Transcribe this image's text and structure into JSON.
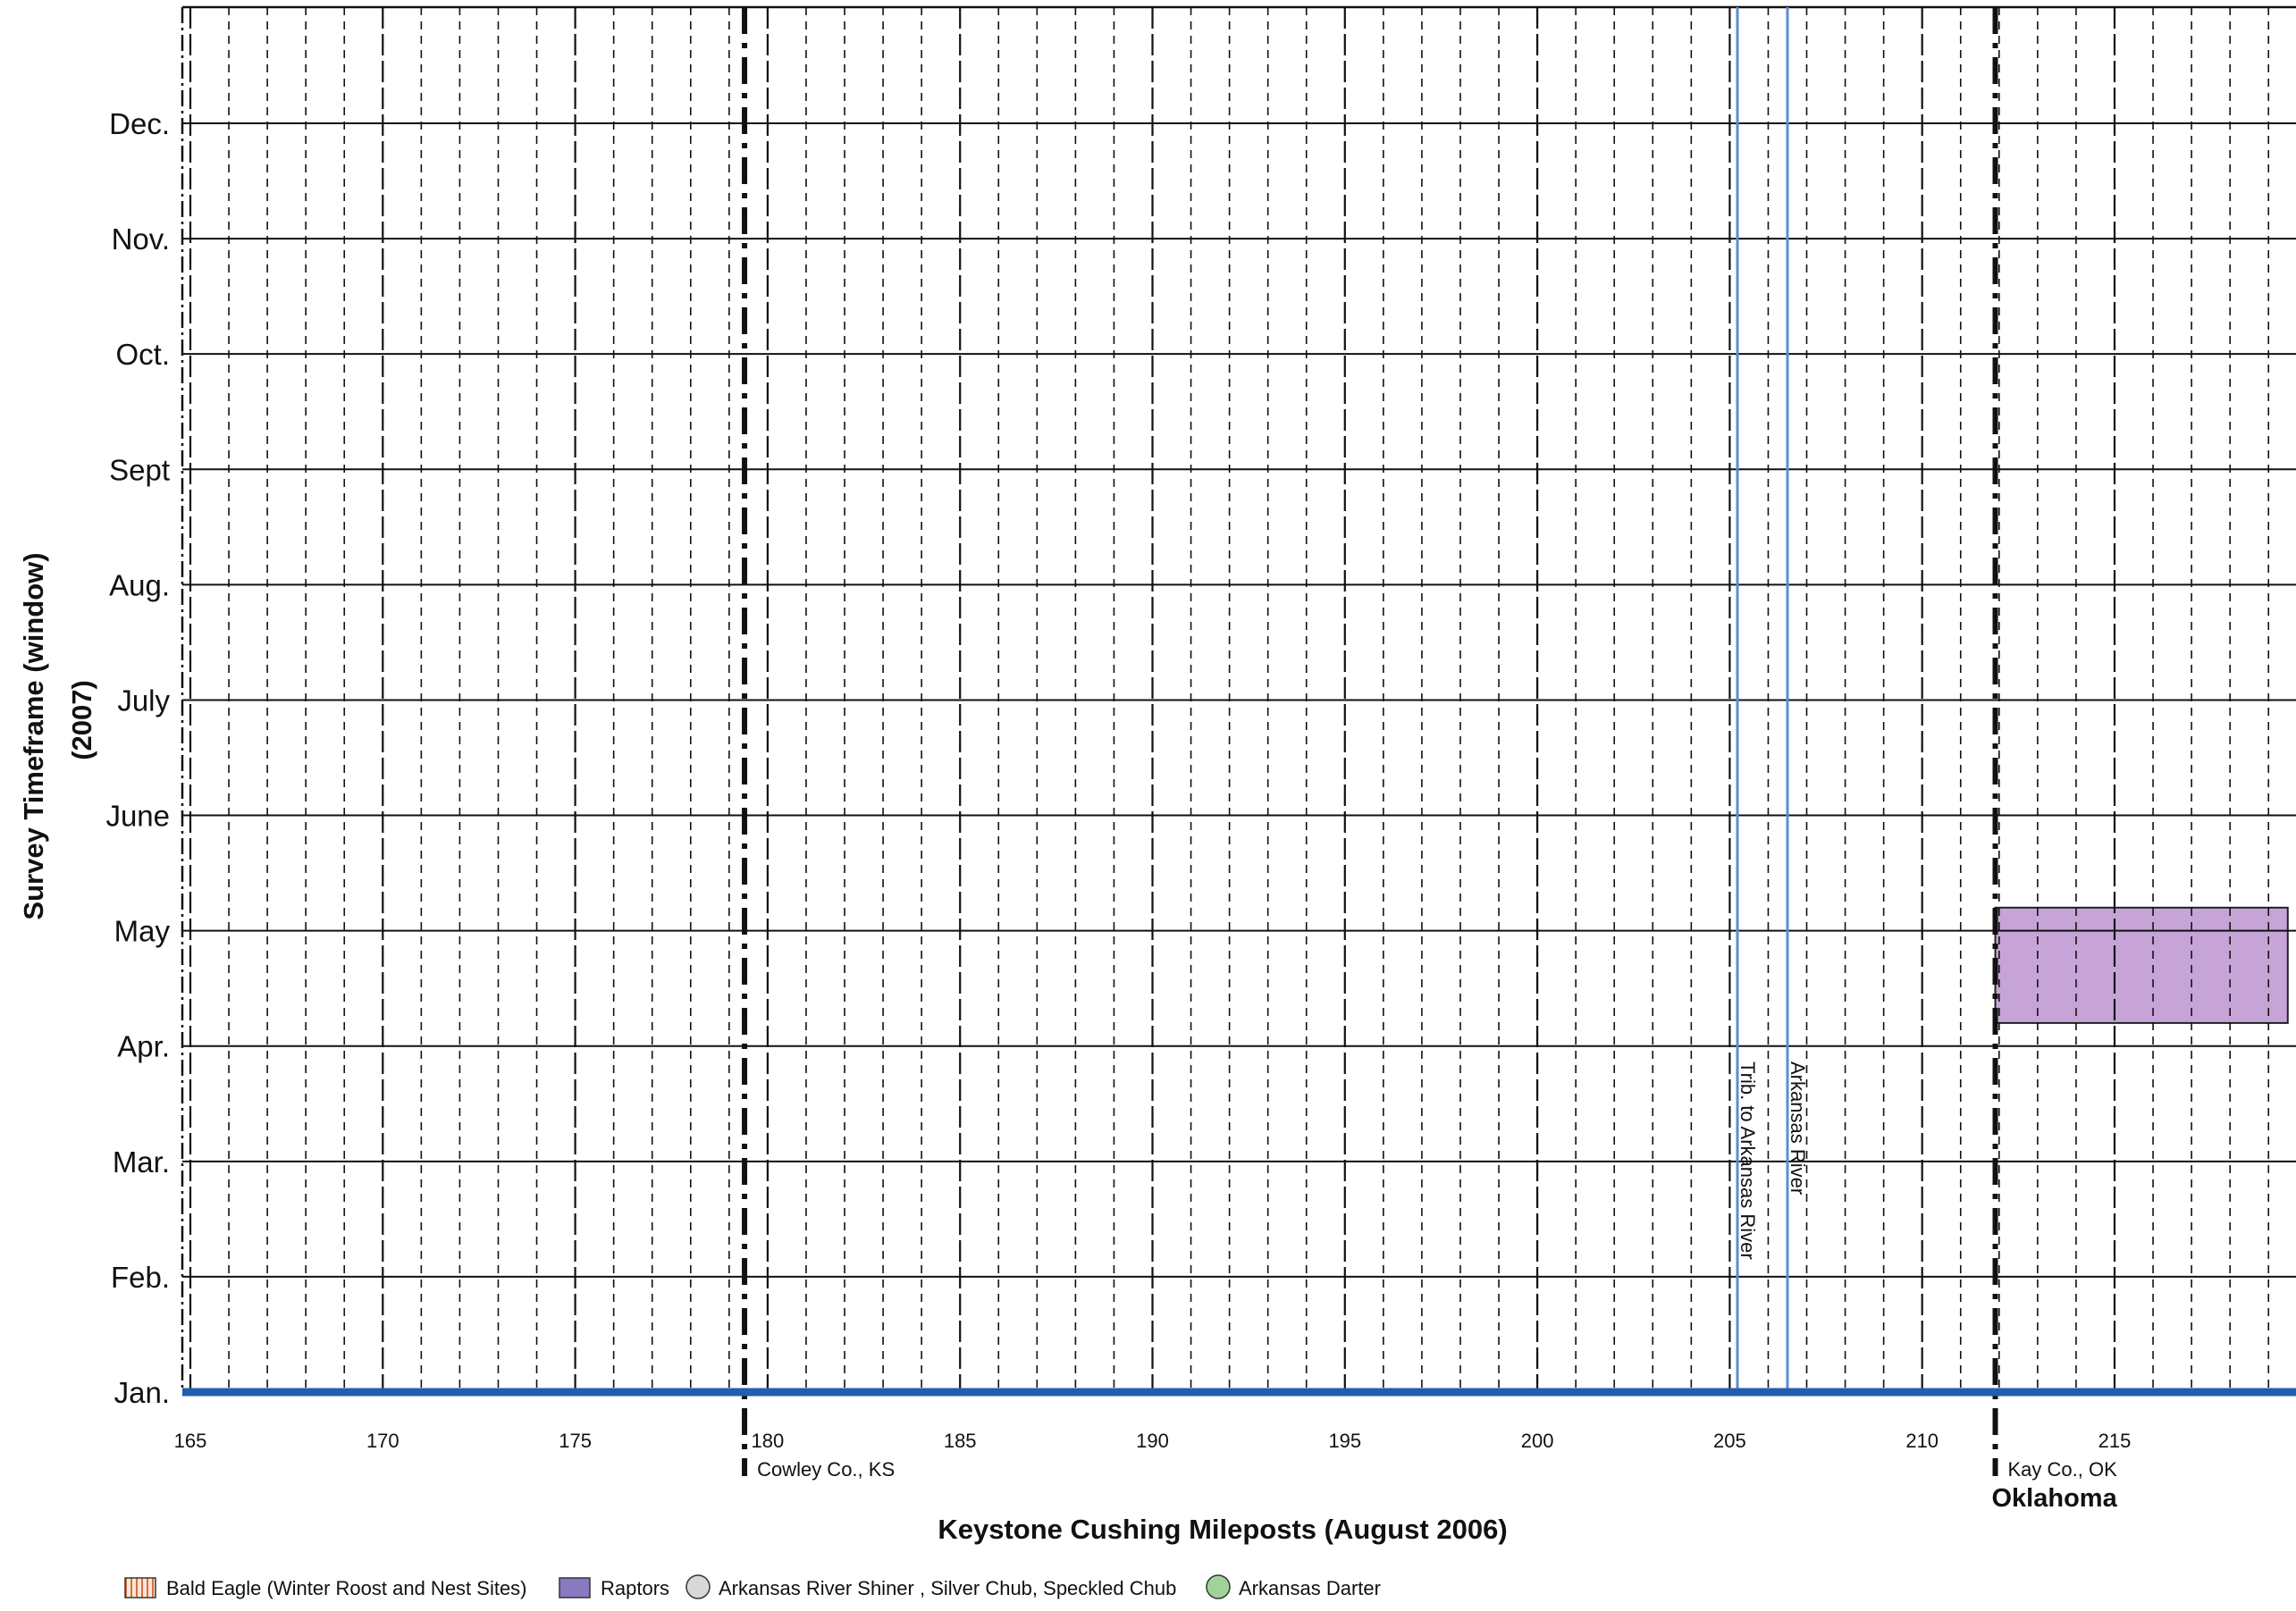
{
  "chart_data": {
    "type": "gantt",
    "xlabel": "Keystone Cushing Mileposts (August 2006)",
    "ylabel_lines": [
      "Survey Timeframe (window)",
      "(2007)"
    ],
    "xlim": [
      165,
      219.5
    ],
    "x_ticks": [
      165,
      170,
      175,
      180,
      185,
      190,
      195,
      200,
      205,
      210,
      215
    ],
    "x_tick_labels": [
      "165",
      "170",
      "175",
      "180",
      "185",
      "190",
      "195",
      "200",
      "205",
      "210",
      "215"
    ],
    "minor_step": 1,
    "months": [
      "Jan.",
      "Feb.",
      "Mar.",
      "Apr.",
      "May",
      "June",
      "July",
      "Aug.",
      "Sept",
      "Oct.",
      "Nov.",
      "Dec."
    ],
    "county_boundaries": [
      {
        "milepost": 179.4,
        "label": "Cowley Co., KS"
      },
      {
        "milepost": 211.9,
        "label": "Kay Co., OK",
        "state": "Oklahoma"
      }
    ],
    "rivers": [
      {
        "milepost": 205.2,
        "label": "Trib. to Arkansas River"
      },
      {
        "milepost": 206.5,
        "label": "Arkansas River"
      }
    ],
    "survey_windows": [
      {
        "species": "Raptors",
        "milepost_start": 211.9,
        "milepost_end": 219.5,
        "month_start": 3.2,
        "month_end": 4.2,
        "color": "#c7a4d8"
      }
    ],
    "route_line_color": "#1f5fad",
    "legend": [
      {
        "label": "Bald Eagle (Winter Roost and Nest Sites)",
        "symbol": "hatch-square",
        "color": "#e59a6a"
      },
      {
        "label": "Raptors",
        "symbol": "square",
        "color": "#8a78c0"
      },
      {
        "label": "Arkansas River Shiner , Silver Chub, Speckled Chub",
        "symbol": "circle",
        "color": "#d8d8d8"
      },
      {
        "label": "Arkansas Darter",
        "symbol": "circle",
        "color": "#9fd39a"
      }
    ]
  }
}
